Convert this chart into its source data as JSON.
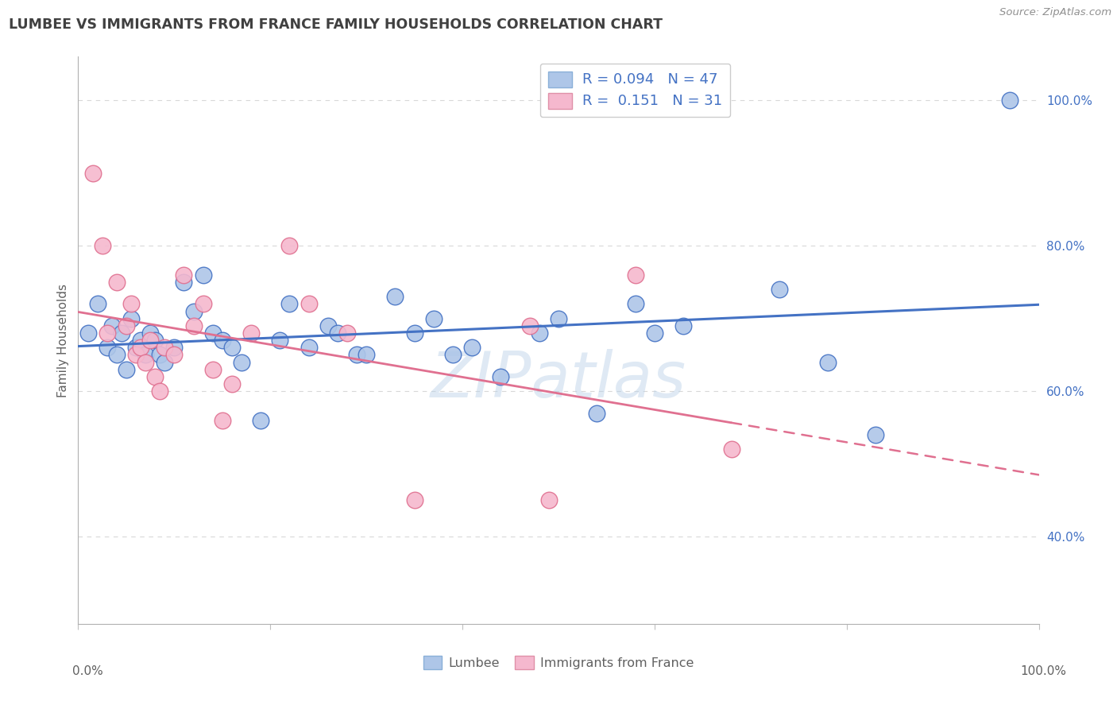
{
  "title": "LUMBEE VS IMMIGRANTS FROM FRANCE FAMILY HOUSEHOLDS CORRELATION CHART",
  "source": "Source: ZipAtlas.com",
  "ylabel": "Family Households",
  "watermark": "ZIPatlas",
  "color_blue": "#aec6e8",
  "color_pink": "#f5b8ce",
  "line_blue": "#4472C4",
  "line_pink": "#E07090",
  "title_color": "#404040",
  "source_color": "#909090",
  "axis_color": "#606060",
  "grid_color": "#d8d8d8",
  "blue_scatter": [
    [
      1.0,
      68.0
    ],
    [
      2.0,
      72.0
    ],
    [
      3.0,
      66.0
    ],
    [
      3.5,
      69.0
    ],
    [
      4.0,
      65.0
    ],
    [
      4.5,
      68.0
    ],
    [
      5.0,
      63.0
    ],
    [
      5.5,
      70.0
    ],
    [
      6.0,
      66.0
    ],
    [
      6.5,
      67.0
    ],
    [
      7.0,
      65.0
    ],
    [
      7.5,
      68.0
    ],
    [
      8.0,
      67.0
    ],
    [
      8.5,
      65.0
    ],
    [
      9.0,
      64.0
    ],
    [
      10.0,
      66.0
    ],
    [
      11.0,
      75.0
    ],
    [
      12.0,
      71.0
    ],
    [
      13.0,
      76.0
    ],
    [
      14.0,
      68.0
    ],
    [
      15.0,
      67.0
    ],
    [
      16.0,
      66.0
    ],
    [
      17.0,
      64.0
    ],
    [
      19.0,
      56.0
    ],
    [
      21.0,
      67.0
    ],
    [
      22.0,
      72.0
    ],
    [
      24.0,
      66.0
    ],
    [
      26.0,
      69.0
    ],
    [
      27.0,
      68.0
    ],
    [
      29.0,
      65.0
    ],
    [
      30.0,
      65.0
    ],
    [
      33.0,
      73.0
    ],
    [
      35.0,
      68.0
    ],
    [
      37.0,
      70.0
    ],
    [
      39.0,
      65.0
    ],
    [
      41.0,
      66.0
    ],
    [
      44.0,
      62.0
    ],
    [
      48.0,
      68.0
    ],
    [
      50.0,
      70.0
    ],
    [
      54.0,
      57.0
    ],
    [
      58.0,
      72.0
    ],
    [
      60.0,
      68.0
    ],
    [
      63.0,
      69.0
    ],
    [
      73.0,
      74.0
    ],
    [
      78.0,
      64.0
    ],
    [
      83.0,
      54.0
    ],
    [
      97.0,
      100.0
    ]
  ],
  "pink_scatter": [
    [
      1.5,
      90.0
    ],
    [
      2.5,
      80.0
    ],
    [
      3.0,
      68.0
    ],
    [
      4.0,
      75.0
    ],
    [
      5.0,
      69.0
    ],
    [
      5.5,
      72.0
    ],
    [
      6.0,
      65.0
    ],
    [
      6.5,
      66.0
    ],
    [
      7.0,
      64.0
    ],
    [
      7.5,
      67.0
    ],
    [
      8.0,
      62.0
    ],
    [
      8.5,
      60.0
    ],
    [
      9.0,
      66.0
    ],
    [
      10.0,
      65.0
    ],
    [
      11.0,
      76.0
    ],
    [
      12.0,
      69.0
    ],
    [
      13.0,
      72.0
    ],
    [
      14.0,
      63.0
    ],
    [
      15.0,
      56.0
    ],
    [
      16.0,
      61.0
    ],
    [
      18.0,
      68.0
    ],
    [
      22.0,
      80.0
    ],
    [
      24.0,
      72.0
    ],
    [
      28.0,
      68.0
    ],
    [
      35.0,
      45.0
    ],
    [
      47.0,
      69.0
    ],
    [
      49.0,
      45.0
    ],
    [
      58.0,
      76.0
    ],
    [
      68.0,
      52.0
    ]
  ],
  "xlim": [
    0,
    100
  ],
  "ylim": [
    28,
    106
  ],
  "ytick_values": [
    40,
    60,
    80,
    100
  ],
  "ytick_labels": [
    "40.0%",
    "60.0%",
    "80.0%",
    "100.0%"
  ],
  "figsize": [
    14.06,
    8.92
  ],
  "dpi": 100
}
